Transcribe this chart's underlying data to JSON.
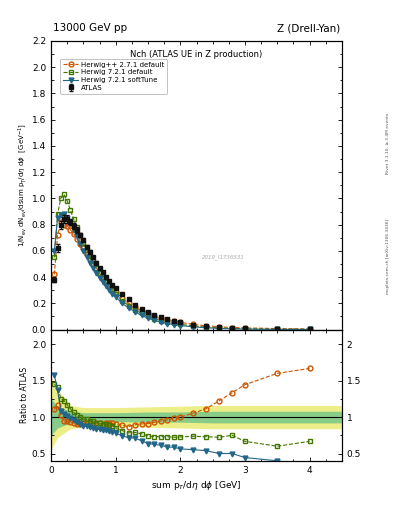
{
  "title_top": "13000 GeV pp",
  "title_right": "Z (Drell-Yan)",
  "panel_title": "Nch (ATLAS UE in Z production)",
  "ylabel_ratio": "Ratio to ATLAS",
  "xlabel": "sum p$_T$/dη dφ [GeV]",
  "right_label_1": "Rivet 3.1.10, ≥ 3.4M events",
  "right_label_2": "mcplots.cern.ch [arXiv:1306.3436]",
  "watermark": "2019_I1736531",
  "xlim": [
    0,
    4.5
  ],
  "ylim_main": [
    0,
    2.2
  ],
  "ylim_ratio": [
    0.4,
    2.2
  ],
  "atlas_color": "#111111",
  "herwig_pp_color": "#cc5500",
  "herwig721_default_color": "#447700",
  "herwig721_softtune_color": "#226688",
  "band_yellow": "#eeee88",
  "band_green": "#88cc88",
  "atlas_x": [
    0.05,
    0.1,
    0.15,
    0.2,
    0.25,
    0.3,
    0.35,
    0.4,
    0.45,
    0.5,
    0.55,
    0.6,
    0.65,
    0.7,
    0.75,
    0.8,
    0.85,
    0.9,
    0.95,
    1.0,
    1.1,
    1.2,
    1.3,
    1.4,
    1.5,
    1.6,
    1.7,
    1.8,
    1.9,
    2.0,
    2.2,
    2.4,
    2.6,
    2.8,
    3.0,
    3.5,
    4.0
  ],
  "atlas_y": [
    0.38,
    0.62,
    0.8,
    0.84,
    0.84,
    0.82,
    0.79,
    0.76,
    0.72,
    0.68,
    0.63,
    0.59,
    0.55,
    0.51,
    0.47,
    0.44,
    0.4,
    0.37,
    0.34,
    0.32,
    0.27,
    0.23,
    0.19,
    0.16,
    0.135,
    0.112,
    0.093,
    0.078,
    0.065,
    0.055,
    0.038,
    0.026,
    0.018,
    0.012,
    0.009,
    0.005,
    0.003
  ],
  "atlas_yerr": [
    0.02,
    0.03,
    0.03,
    0.03,
    0.03,
    0.025,
    0.022,
    0.02,
    0.018,
    0.016,
    0.015,
    0.013,
    0.012,
    0.011,
    0.01,
    0.009,
    0.008,
    0.007,
    0.007,
    0.006,
    0.005,
    0.004,
    0.003,
    0.003,
    0.0025,
    0.002,
    0.0018,
    0.0015,
    0.0013,
    0.001,
    0.0007,
    0.0005,
    0.0004,
    0.0003,
    0.0002,
    0.0001,
    0.0001
  ],
  "band_x": [
    0.0,
    0.1,
    0.3,
    0.5,
    1.0,
    1.5,
    2.0,
    2.5,
    3.0,
    3.5,
    4.0,
    4.5
  ],
  "band_inner_lo": [
    0.75,
    0.85,
    0.92,
    0.94,
    0.94,
    0.93,
    0.93,
    0.92,
    0.92,
    0.92,
    0.92,
    0.92
  ],
  "band_inner_hi": [
    1.25,
    1.15,
    1.08,
    1.06,
    1.06,
    1.07,
    1.07,
    1.08,
    1.08,
    1.08,
    1.08,
    1.08
  ],
  "band_outer_lo": [
    0.55,
    0.72,
    0.84,
    0.87,
    0.87,
    0.86,
    0.85,
    0.84,
    0.84,
    0.84,
    0.84,
    0.84
  ],
  "band_outer_hi": [
    1.55,
    1.38,
    1.16,
    1.13,
    1.13,
    1.14,
    1.15,
    1.16,
    1.16,
    1.16,
    1.16,
    1.16
  ],
  "hpp_x": [
    0.05,
    0.1,
    0.15,
    0.2,
    0.25,
    0.3,
    0.35,
    0.4,
    0.45,
    0.5,
    0.55,
    0.6,
    0.65,
    0.7,
    0.75,
    0.8,
    0.85,
    0.9,
    0.95,
    1.0,
    1.1,
    1.2,
    1.3,
    1.4,
    1.5,
    1.6,
    1.7,
    1.8,
    1.9,
    2.0,
    2.2,
    2.4,
    2.6,
    2.8,
    3.0,
    3.5,
    4.0
  ],
  "hpp_y": [
    0.42,
    0.72,
    0.82,
    0.8,
    0.79,
    0.76,
    0.73,
    0.69,
    0.65,
    0.62,
    0.58,
    0.54,
    0.5,
    0.47,
    0.43,
    0.4,
    0.37,
    0.34,
    0.31,
    0.29,
    0.24,
    0.2,
    0.17,
    0.145,
    0.123,
    0.104,
    0.088,
    0.075,
    0.064,
    0.055,
    0.04,
    0.029,
    0.022,
    0.016,
    0.013,
    0.008,
    0.005
  ],
  "h721d_x": [
    0.05,
    0.1,
    0.15,
    0.2,
    0.25,
    0.3,
    0.35,
    0.4,
    0.45,
    0.5,
    0.55,
    0.6,
    0.65,
    0.7,
    0.75,
    0.8,
    0.85,
    0.9,
    0.95,
    1.0,
    1.1,
    1.2,
    1.3,
    1.4,
    1.5,
    1.6,
    1.7,
    1.8,
    1.9,
    2.0,
    2.2,
    2.4,
    2.6,
    2.8,
    3.0,
    3.5,
    4.0
  ],
  "h721d_y": [
    0.55,
    0.88,
    1.0,
    1.03,
    0.98,
    0.91,
    0.84,
    0.78,
    0.72,
    0.66,
    0.61,
    0.56,
    0.52,
    0.47,
    0.43,
    0.39,
    0.36,
    0.33,
    0.3,
    0.27,
    0.22,
    0.18,
    0.15,
    0.123,
    0.1,
    0.082,
    0.068,
    0.057,
    0.047,
    0.04,
    0.028,
    0.019,
    0.013,
    0.009,
    0.006,
    0.003,
    0.002
  ],
  "h721s_x": [
    0.05,
    0.1,
    0.15,
    0.2,
    0.25,
    0.3,
    0.35,
    0.4,
    0.45,
    0.5,
    0.55,
    0.6,
    0.65,
    0.7,
    0.75,
    0.8,
    0.85,
    0.9,
    0.95,
    1.0,
    1.1,
    1.2,
    1.3,
    1.4,
    1.5,
    1.6,
    1.7,
    1.8,
    1.9,
    2.0,
    2.2,
    2.4,
    2.6,
    2.8,
    3.0,
    3.5,
    4.0
  ],
  "h721s_y": [
    0.6,
    0.85,
    0.87,
    0.88,
    0.85,
    0.81,
    0.76,
    0.71,
    0.65,
    0.6,
    0.55,
    0.51,
    0.47,
    0.43,
    0.39,
    0.36,
    0.33,
    0.3,
    0.27,
    0.25,
    0.2,
    0.165,
    0.135,
    0.108,
    0.086,
    0.07,
    0.057,
    0.046,
    0.038,
    0.031,
    0.021,
    0.014,
    0.009,
    0.006,
    0.004,
    0.002,
    0.001
  ]
}
